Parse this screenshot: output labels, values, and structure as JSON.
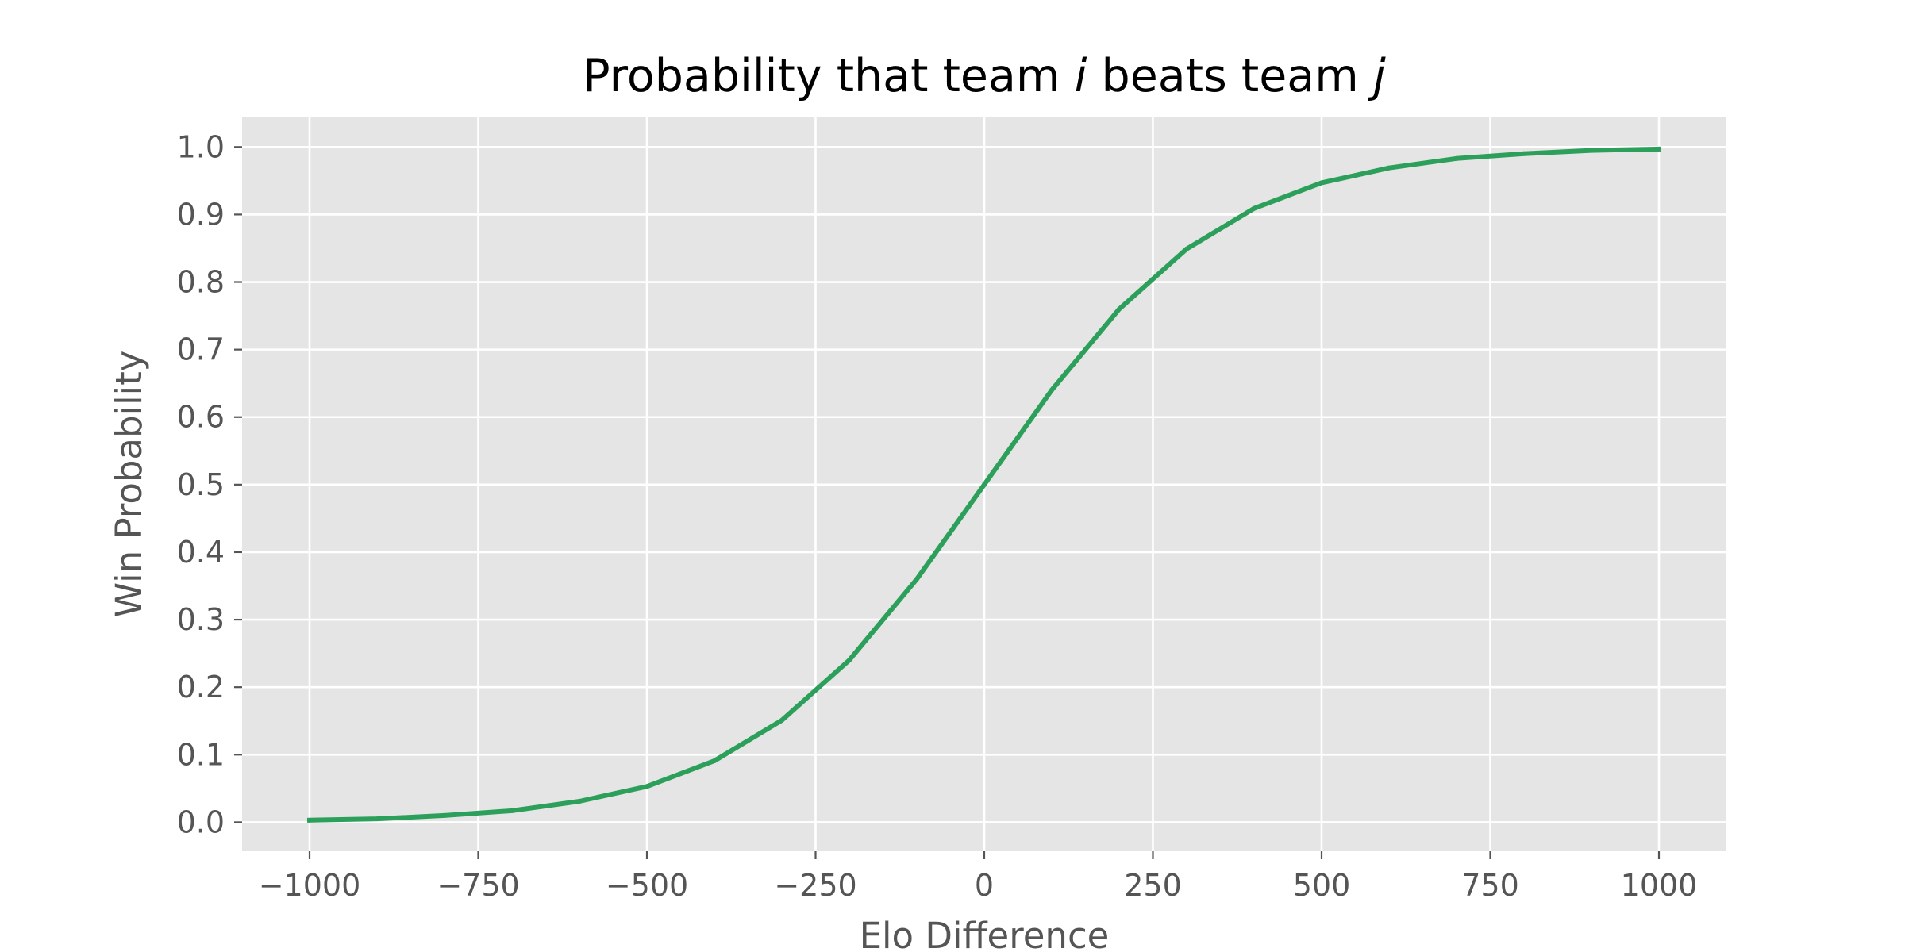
{
  "chart_data": {
    "type": "line",
    "title_parts": [
      {
        "text": "Probability that team ",
        "italic": false
      },
      {
        "text": "i",
        "italic": true
      },
      {
        "text": " beats team ",
        "italic": false
      },
      {
        "text": "j",
        "italic": true
      }
    ],
    "xlabel": "Elo Difference",
    "ylabel": "Win Probability",
    "xlim": [
      -1100,
      1100
    ],
    "ylim": [
      -0.043,
      1.045
    ],
    "xticks": [
      -1000,
      -750,
      -500,
      -250,
      0,
      250,
      500,
      750,
      1000
    ],
    "xtick_labels": [
      "−1000",
      "−750",
      "−500",
      "−250",
      "0",
      "250",
      "500",
      "750",
      "1000"
    ],
    "yticks": [
      0.0,
      0.1,
      0.2,
      0.3,
      0.4,
      0.5,
      0.6,
      0.7,
      0.8,
      0.9,
      1.0
    ],
    "ytick_labels": [
      "0.0",
      "0.1",
      "0.2",
      "0.3",
      "0.4",
      "0.5",
      "0.6",
      "0.7",
      "0.8",
      "0.9",
      "1.0"
    ],
    "grid": true,
    "colors": {
      "plot_background": "#e5e5e5",
      "grid": "#ffffff",
      "line": "#2ca05a"
    },
    "series": [
      {
        "x": [
          -1000,
          -900,
          -800,
          -700,
          -600,
          -500,
          -400,
          -300,
          -200,
          -100,
          0,
          100,
          200,
          300,
          400,
          500,
          600,
          700,
          800,
          900,
          1000
        ],
        "values": [
          0.003,
          0.005,
          0.01,
          0.017,
          0.031,
          0.053,
          0.091,
          0.151,
          0.24,
          0.36,
          0.5,
          0.64,
          0.76,
          0.849,
          0.909,
          0.947,
          0.969,
          0.983,
          0.99,
          0.995,
          0.997
        ]
      }
    ]
  }
}
